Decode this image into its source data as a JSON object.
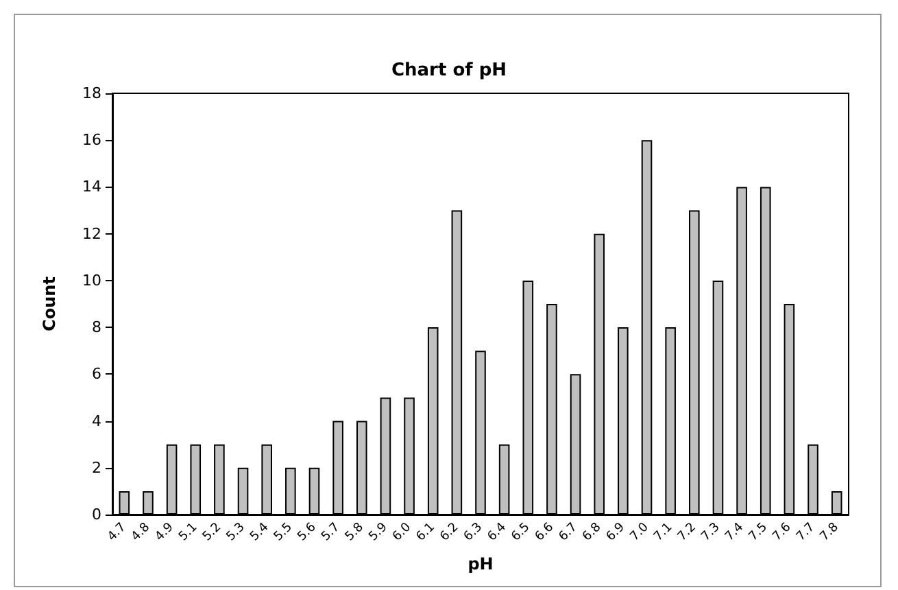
{
  "chart_data": {
    "type": "bar",
    "title": "Chart of pH",
    "xlabel": "pH",
    "ylabel": "Count",
    "categories": [
      "4.7",
      "4.8",
      "4.9",
      "5.1",
      "5.2",
      "5.3",
      "5.4",
      "5.5",
      "5.6",
      "5.7",
      "5.8",
      "5.9",
      "6.0",
      "6.1",
      "6.2",
      "6.3",
      "6.4",
      "6.5",
      "6.6",
      "6.7",
      "6.8",
      "6.9",
      "7.0",
      "7.1",
      "7.2",
      "7.3",
      "7.4",
      "7.5",
      "7.6",
      "7.7",
      "7.8"
    ],
    "values": [
      1,
      1,
      3,
      3,
      3,
      2,
      3,
      2,
      2,
      4,
      4,
      5,
      5,
      8,
      13,
      7,
      3,
      10,
      9,
      6,
      12,
      8,
      16,
      8,
      13,
      10,
      14,
      14,
      9,
      3,
      1
    ],
    "color": "#c0c0c0",
    "ylim": [
      0,
      18
    ],
    "yticks": [
      0,
      2,
      4,
      6,
      8,
      10,
      12,
      14,
      16,
      18
    ],
    "grid": false
  }
}
